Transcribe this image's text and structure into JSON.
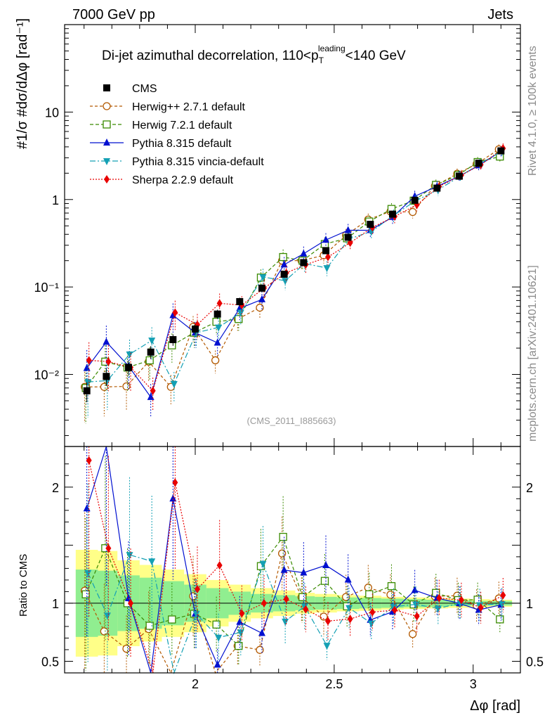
{
  "header": {
    "left": "7000 GeV pp",
    "right": "Jets"
  },
  "side_text": {
    "top": "Rivet 4.1.0, ≥ 100k events",
    "bottom": "mcplots.cern.ch [arXiv:2401.10621]"
  },
  "analysis_tag": "(CMS_2011_I885663)",
  "chart_data": {
    "type": "line",
    "title": "Di-jet azimuthal decorrelation, 110<p_T^leading<140 GeV",
    "title_parts": {
      "pre": "Di-jet azimuthal decorrelation, 110<p",
      "sub": "T",
      "sup": "leading",
      "post": "<140 GeV"
    },
    "xlabel": "Δφ [rad]",
    "ylabel": "#1/σ #dσ/dΔφ [rad⁻¹]",
    "ratio_ylabel": "Ratio to CMS",
    "xlim": [
      1.53,
      3.17
    ],
    "ylim": [
      0.0015,
      100
    ],
    "ratio_ylim": [
      0.4,
      2.35
    ],
    "yscale": "log",
    "x_ticks": [
      "2",
      "2.5",
      "3"
    ],
    "y_ticks": [
      "10⁻²",
      "10⁻¹",
      "1",
      "10"
    ],
    "ratio_ticks": [
      "0.5",
      "1",
      "2"
    ],
    "x": [
      1.61,
      1.68,
      1.76,
      1.84,
      1.92,
      2.0,
      2.08,
      2.16,
      2.24,
      2.32,
      2.39,
      2.47,
      2.55,
      2.63,
      2.71,
      2.79,
      2.87,
      2.95,
      3.02,
      3.1
    ],
    "data": {
      "name": "CMS",
      "values": [
        0.0065,
        0.0095,
        0.012,
        0.018,
        0.025,
        0.033,
        0.049,
        0.068,
        0.097,
        0.14,
        0.19,
        0.26,
        0.37,
        0.52,
        0.68,
        0.98,
        1.35,
        1.85,
        2.6,
        3.6
      ]
    },
    "series": [
      {
        "name": "Herwig++ 2.7.1 default",
        "color": "#b35900",
        "marker": "open-circle",
        "dash": "4,3",
        "values": [
          0.0072,
          0.0072,
          0.0073,
          0.014,
          0.0072,
          0.035,
          0.0145,
          0.043,
          0.058,
          0.2,
          0.2,
          0.23,
          0.39,
          0.59,
          0.73,
          0.72,
          1.43,
          1.97,
          2.55,
          3.75
        ]
      },
      {
        "name": "Herwig 7.2.1 default",
        "color": "#3a8a00",
        "marker": "open-square",
        "dash": "5,3",
        "values": [
          0.007,
          0.014,
          0.012,
          0.0145,
          0.0215,
          0.03,
          0.04,
          0.043,
          0.128,
          0.22,
          0.2,
          0.31,
          0.36,
          0.56,
          0.78,
          0.97,
          1.47,
          1.9,
          2.68,
          3.1
        ]
      },
      {
        "name": "Pythia 8.315 default",
        "color": "#0010d0",
        "marker": "filled-triangle-up",
        "dash": "",
        "values": [
          0.0118,
          0.0235,
          0.0125,
          0.0055,
          0.0475,
          0.03,
          0.023,
          0.057,
          0.072,
          0.18,
          0.24,
          0.345,
          0.445,
          0.445,
          0.63,
          1.09,
          1.41,
          1.85,
          2.45,
          3.55
        ]
      },
      {
        "name": "Pythia 8.315 vincia-default",
        "color": "#14a0b4",
        "marker": "filled-triangle-down",
        "dash": "8,3,2,3",
        "values": [
          0.0082,
          0.0085,
          0.017,
          0.0245,
          0.0078,
          0.03,
          0.0345,
          0.051,
          0.13,
          0.118,
          0.185,
          0.165,
          0.355,
          0.43,
          0.66,
          0.97,
          1.29,
          1.85,
          2.56,
          3.58
        ]
      },
      {
        "name": "Sherpa 2.2.9 default",
        "color": "#e80000",
        "marker": "filled-diamond",
        "dash": "2,2",
        "values": [
          0.0145,
          0.014,
          0.012,
          0.0065,
          0.051,
          0.037,
          0.065,
          0.062,
          0.097,
          0.145,
          0.18,
          0.22,
          0.32,
          0.48,
          0.64,
          0.87,
          1.41,
          1.9,
          2.5,
          3.85
        ]
      }
    ]
  }
}
